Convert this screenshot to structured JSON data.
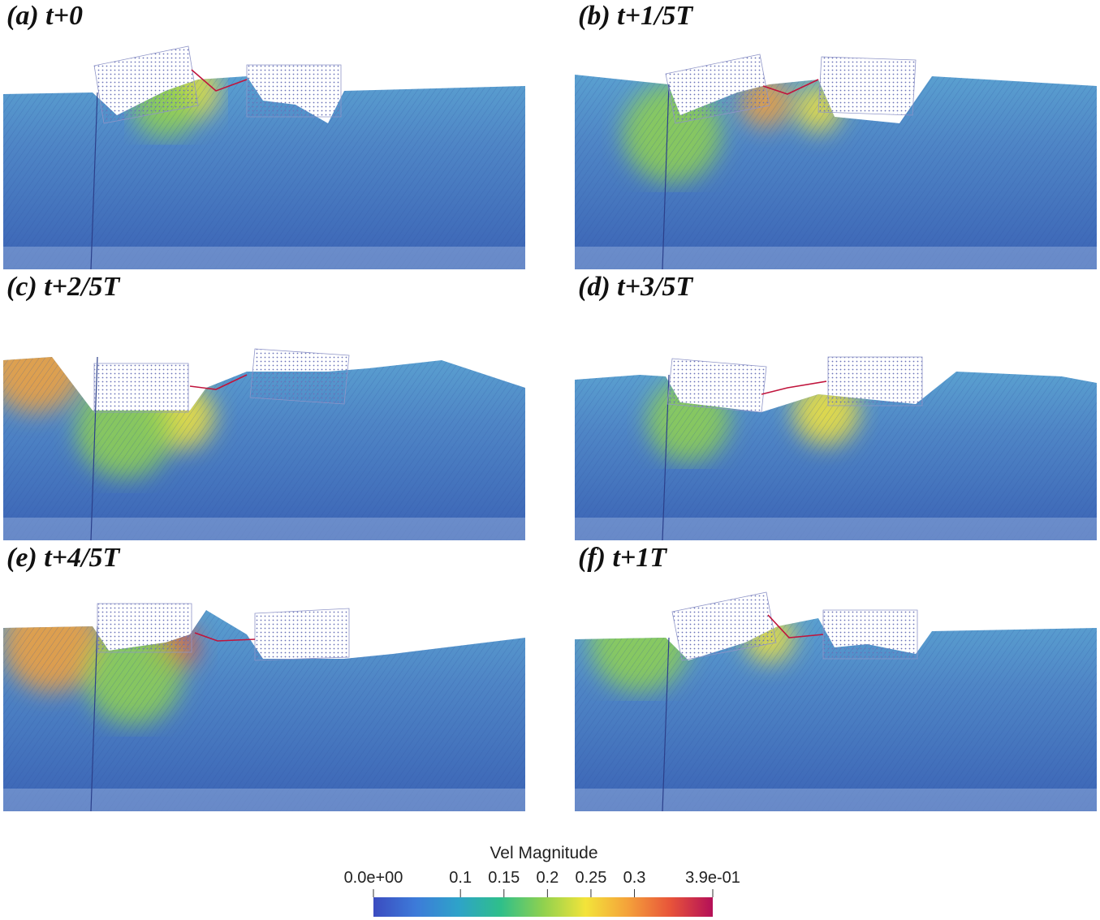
{
  "panels": [
    {
      "label": "(a) t+0"
    },
    {
      "label": "(b) t+1/5T"
    },
    {
      "label": "(c) t+2/5T"
    },
    {
      "label": "(d) t+3/5T"
    },
    {
      "label": "(e) t+4/5T"
    },
    {
      "label": "(f) t+1T"
    }
  ],
  "legend": {
    "title": "Vel Magnitude",
    "min_label": "0.0e+00",
    "max_label": "3.9e-01",
    "min": 0.0,
    "max": 0.39,
    "ticks": [
      {
        "value": 0.1,
        "label": "0.1"
      },
      {
        "value": 0.15,
        "label": "0.15"
      },
      {
        "value": 0.2,
        "label": "0.2"
      },
      {
        "value": 0.25,
        "label": "0.25"
      },
      {
        "value": 0.3,
        "label": "0.3"
      }
    ],
    "colors": [
      "#3b4cc0",
      "#3d7bd9",
      "#2ea3c9",
      "#2fbf8a",
      "#8fd14f",
      "#f3e43a",
      "#f4a13a",
      "#e8543a",
      "#b40f58"
    ]
  },
  "colors": {
    "water": "#4f86c6",
    "water_deep": "#3b63b5",
    "body_dots": "#6a72b8",
    "mooring": "#c0143c"
  }
}
